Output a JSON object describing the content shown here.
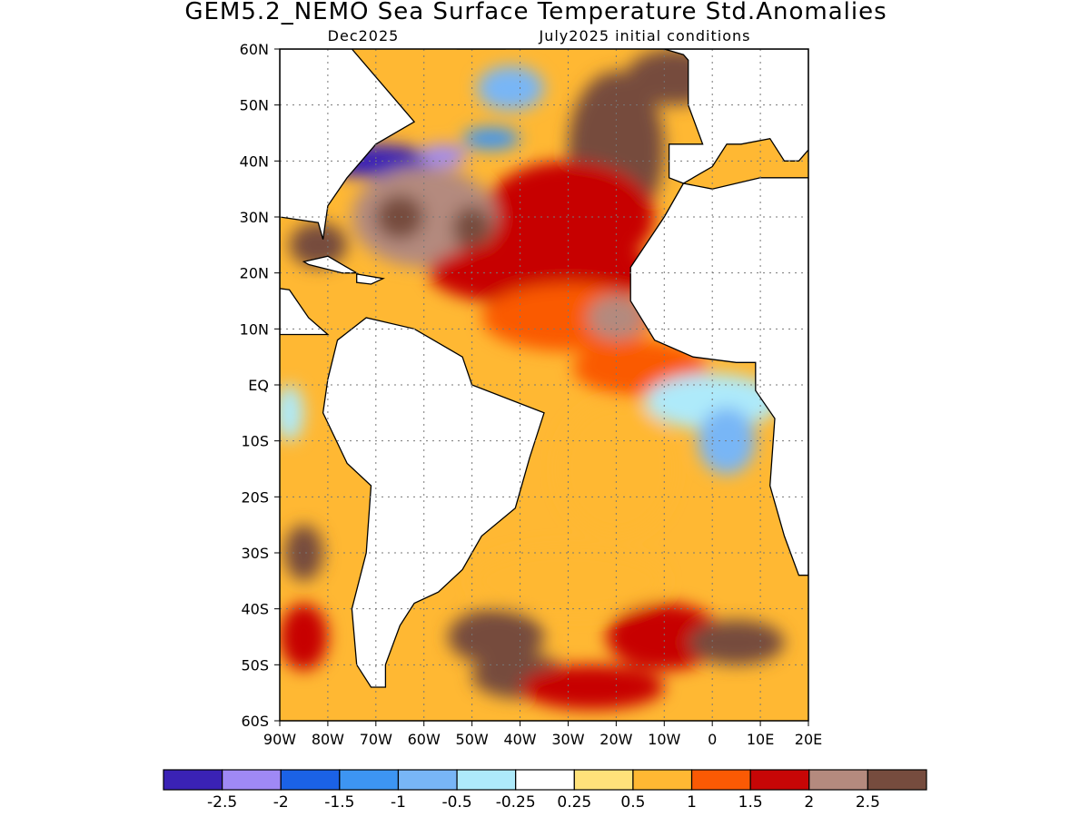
{
  "title": "GEM5.2_NEMO Sea Surface Temperature Std.Anomalies",
  "subtitle_left": "Dec2025",
  "subtitle_right": "July2025 initial conditions",
  "map": {
    "lon_range": [
      -90,
      20
    ],
    "lat_range": [
      -60,
      60
    ],
    "lon_ticks": [
      {
        "lon": -90,
        "label": "90W"
      },
      {
        "lon": -80,
        "label": "80W"
      },
      {
        "lon": -70,
        "label": "70W"
      },
      {
        "lon": -60,
        "label": "60W"
      },
      {
        "lon": -50,
        "label": "50W"
      },
      {
        "lon": -40,
        "label": "40W"
      },
      {
        "lon": -30,
        "label": "30W"
      },
      {
        "lon": -20,
        "label": "20W"
      },
      {
        "lon": -10,
        "label": "10W"
      },
      {
        "lon": 0,
        "label": "0"
      },
      {
        "lon": 10,
        "label": "10E"
      },
      {
        "lon": 20,
        "label": "20E"
      }
    ],
    "lat_ticks": [
      {
        "lat": 60,
        "label": "60N"
      },
      {
        "lat": 50,
        "label": "50N"
      },
      {
        "lat": 40,
        "label": "40N"
      },
      {
        "lat": 30,
        "label": "30N"
      },
      {
        "lat": 20,
        "label": "20N"
      },
      {
        "lat": 10,
        "label": "10N"
      },
      {
        "lat": 0,
        "label": "EQ"
      },
      {
        "lat": -10,
        "label": "10S"
      },
      {
        "lat": -20,
        "label": "20S"
      },
      {
        "lat": -30,
        "label": "30S"
      },
      {
        "lat": -40,
        "label": "40S"
      },
      {
        "lat": -50,
        "label": "50S"
      },
      {
        "lat": -60,
        "label": "60S"
      }
    ],
    "grid": "dotted"
  },
  "colorbar": {
    "colors": [
      "#3a22b5",
      "#9f89f5",
      "#1b62e6",
      "#3d95f2",
      "#78b6f6",
      "#aeeafa",
      "#ffffff",
      "#ffe27a",
      "#ffb833",
      "#fa5a04",
      "#c70606",
      "#b48a7e",
      "#764c3e"
    ],
    "labels": [
      "-2.5",
      "-2",
      "-1.5",
      "-1",
      "-0.5",
      "-0.25",
      "0.25",
      "0.5",
      "1",
      "1.5",
      "2",
      "2.5"
    ]
  },
  "chart_data": {
    "type": "heatmap",
    "title": "GEM5.2_NEMO Sea Surface Temperature Std.Anomalies",
    "subtitle": [
      "Dec2025",
      "July2025 initial conditions"
    ],
    "x_range": [
      -90,
      20
    ],
    "y_range": [
      -60,
      60
    ],
    "land_color": "#ffffff",
    "levels": [
      -2.5,
      -2,
      -1.5,
      -1,
      -0.5,
      -0.25,
      0.25,
      0.5,
      1,
      1.5,
      2,
      2.5
    ],
    "regions": [
      {
        "lon": -70,
        "lat": 40,
        "rx": 12,
        "ry": 3,
        "v": -2.6
      },
      {
        "lon": -56,
        "lat": 41,
        "rx": 5,
        "ry": 2,
        "v": -2.2
      },
      {
        "lon": -42,
        "lat": 53,
        "rx": 7,
        "ry": 4,
        "v": -0.7
      },
      {
        "lon": -46,
        "lat": 44,
        "rx": 6,
        "ry": 2,
        "v": -1.3
      },
      {
        "lon": -20,
        "lat": 42,
        "rx": 10,
        "ry": 14,
        "v": 2.7
      },
      {
        "lon": -8,
        "lat": 55,
        "rx": 10,
        "ry": 5,
        "v": 2.7
      },
      {
        "lon": -30,
        "lat": 30,
        "rx": 18,
        "ry": 10,
        "v": 1.6
      },
      {
        "lon": -60,
        "lat": 30,
        "rx": 15,
        "ry": 9,
        "v": 2.1
      },
      {
        "lon": -65,
        "lat": 30,
        "rx": 5,
        "ry": 4,
        "v": 2.6
      },
      {
        "lon": -50,
        "lat": 28,
        "rx": 4,
        "ry": 4,
        "v": 2.6
      },
      {
        "lon": -35,
        "lat": 20,
        "rx": 24,
        "ry": 6,
        "v": 1.6
      },
      {
        "lon": -30,
        "lat": 12,
        "rx": 18,
        "ry": 6,
        "v": 1.2
      },
      {
        "lon": -20,
        "lat": 12,
        "rx": 6,
        "ry": 4,
        "v": 2.1
      },
      {
        "lon": -82,
        "lat": 25,
        "rx": 6,
        "ry": 4,
        "v": 2.5
      },
      {
        "lon": -15,
        "lat": 3,
        "rx": 14,
        "ry": 5,
        "v": 1.1
      },
      {
        "lon": 0,
        "lat": -3,
        "rx": 14,
        "ry": 5,
        "v": -0.4
      },
      {
        "lon": 3,
        "lat": -10,
        "rx": 6,
        "ry": 6,
        "v": -0.8
      },
      {
        "lon": -20,
        "lat": -15,
        "rx": 12,
        "ry": 12,
        "v": 0.9
      },
      {
        "lon": -30,
        "lat": -35,
        "rx": 20,
        "ry": 6,
        "v": 0.9
      },
      {
        "lon": -45,
        "lat": -45,
        "rx": 10,
        "ry": 5,
        "v": 2.6
      },
      {
        "lon": -10,
        "lat": -45,
        "rx": 12,
        "ry": 6,
        "v": 1.8
      },
      {
        "lon": 5,
        "lat": -46,
        "rx": 10,
        "ry": 4,
        "v": 2.7
      },
      {
        "lon": -40,
        "lat": -52,
        "rx": 10,
        "ry": 4,
        "v": 2.6
      },
      {
        "lon": -25,
        "lat": -54,
        "rx": 15,
        "ry": 4,
        "v": 1.7
      },
      {
        "lon": -85,
        "lat": -30,
        "rx": 4,
        "ry": 5,
        "v": 2.6
      },
      {
        "lon": -85,
        "lat": -45,
        "rx": 5,
        "ry": 6,
        "v": 1.7
      },
      {
        "lon": -88,
        "lat": -5,
        "rx": 3,
        "ry": 5,
        "v": -0.4
      }
    ]
  }
}
